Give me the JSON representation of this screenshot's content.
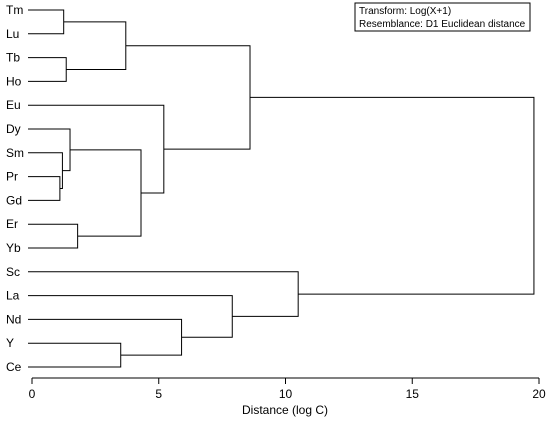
{
  "chart_data": {
    "type": "dendrogram",
    "leaves": [
      "Tm",
      "Lu",
      "Tb",
      "Ho",
      "Eu",
      "Dy",
      "Sm",
      "Pr",
      "Gd",
      "Er",
      "Yb",
      "Sc",
      "La",
      "Nd",
      "Y",
      "Ce"
    ],
    "merges": [
      {
        "a": "Pr",
        "b": "Gd",
        "height": 1.1
      },
      {
        "a": "Sm",
        "b": "Pr+Gd",
        "height": 1.2
      },
      {
        "a": "Tm",
        "b": "Lu",
        "height": 1.25
      },
      {
        "a": "Tb",
        "b": "Ho",
        "height": 1.35
      },
      {
        "a": "Dy",
        "b": "Sm+Pr+Gd",
        "height": 1.5
      },
      {
        "a": "Er",
        "b": "Yb",
        "height": 1.8
      },
      {
        "a": "Y",
        "b": "Ce",
        "height": 3.5
      },
      {
        "a": "Tm+Lu",
        "b": "Tb+Ho",
        "height": 3.7
      },
      {
        "a": "Dy+Sm+Pr+Gd",
        "b": "Er+Yb",
        "height": 4.3
      },
      {
        "a": "Eu",
        "b": "Dy+Sm+Pr+Gd+Er+Yb",
        "height": 5.2
      },
      {
        "a": "Nd",
        "b": "Y+Ce",
        "height": 5.9
      },
      {
        "a": "La",
        "b": "Nd+Y+Ce",
        "height": 7.9
      },
      {
        "a": "Tm+Lu+Tb+Ho",
        "b": "Eu+Dy+Sm+Pr+Gd+Er+Yb",
        "height": 8.6
      },
      {
        "a": "Sc",
        "b": "La+Nd+Y+Ce",
        "height": 10.5
      },
      {
        "a": "Tm..Yb",
        "b": "Sc..Ce",
        "height": 19.8
      }
    ],
    "x_axis": {
      "label": "Distance (log C)",
      "range": [
        0,
        20
      ],
      "ticks": [
        0,
        5,
        10,
        15,
        20
      ]
    },
    "annotation": [
      "Transform: Log(X+1)",
      "Resemblance: D1 Euclidean distance"
    ],
    "legend_position": "top-right",
    "grid": false
  }
}
